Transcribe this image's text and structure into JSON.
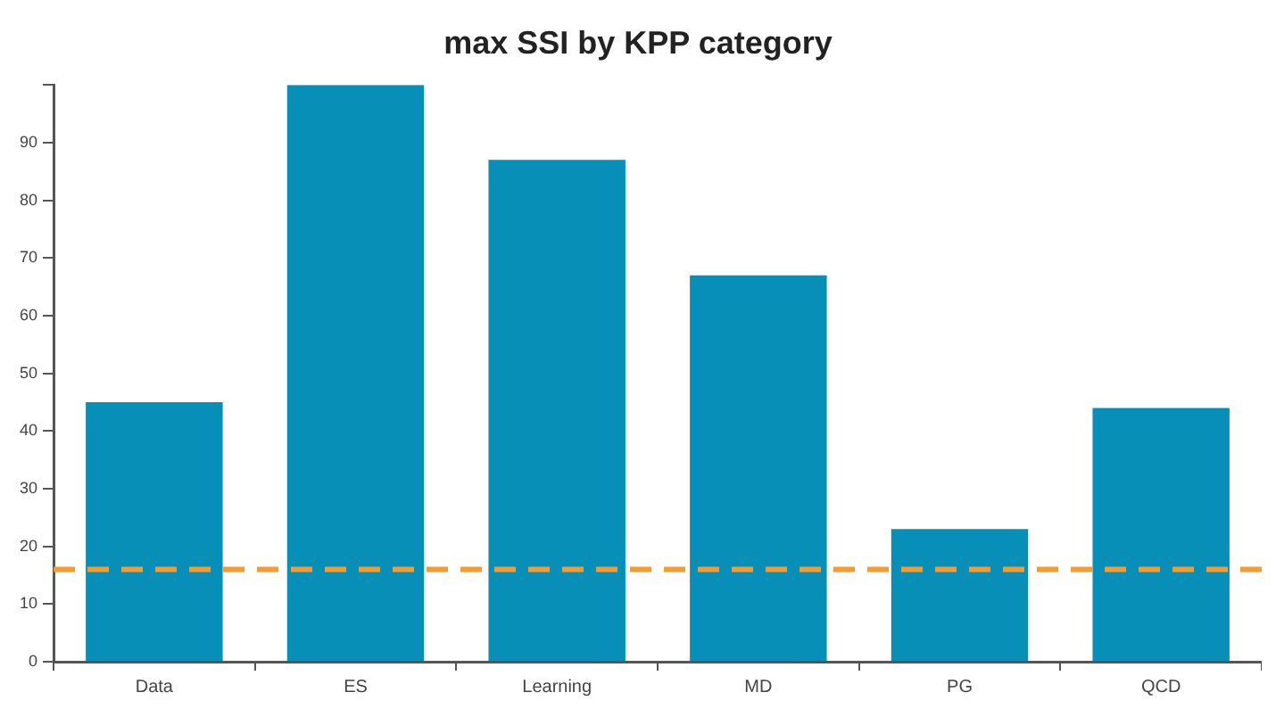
{
  "chart_data": {
    "type": "bar",
    "title": "max SSI by KPP category",
    "categories": [
      "Data",
      "ES",
      "Learning",
      "MD",
      "PG",
      "QCD"
    ],
    "values": [
      45,
      100,
      87,
      67,
      23,
      44
    ],
    "color": "#078fb8",
    "ylim": [
      0,
      100
    ],
    "yticks": [
      0,
      10,
      20,
      30,
      40,
      50,
      60,
      70,
      80,
      90,
      {
        "value": 100,
        "label": null
      }
    ],
    "grid": false,
    "ref_lines": [
      {
        "axis": "y",
        "value": 16,
        "color": "#f39c33",
        "line_style": "dashed"
      }
    ]
  }
}
